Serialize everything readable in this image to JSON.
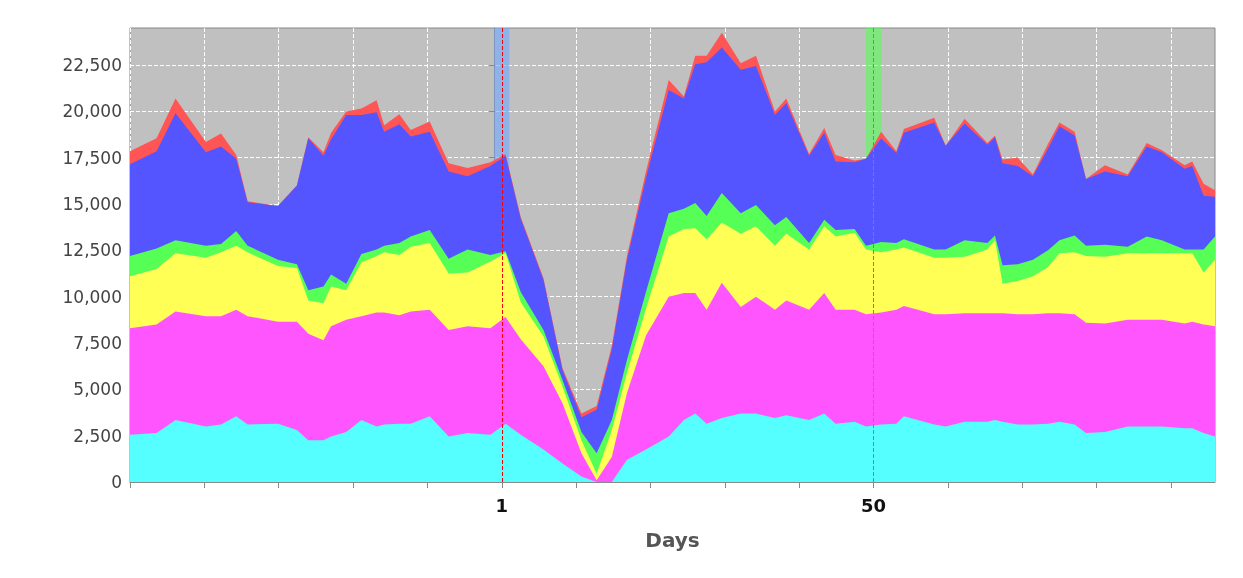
{
  "chart_data": {
    "type": "area",
    "stacked": true,
    "xlabel": "Days",
    "marker": "none",
    "grid": true,
    "xlim": [
      -48,
      95
    ],
    "xticks": [
      {
        "value": -48,
        "label": null
      },
      {
        "value": -38.2,
        "label": null
      },
      {
        "value": -28.4,
        "label": null
      },
      {
        "value": -18.6,
        "label": null
      },
      {
        "value": -8.8,
        "label": null
      },
      {
        "value": 1,
        "label": "1"
      },
      {
        "value": 10.8,
        "label": null
      },
      {
        "value": 20.6,
        "label": null
      },
      {
        "value": 30.4,
        "label": null
      },
      {
        "value": 40.2,
        "label": null
      },
      {
        "value": 50,
        "label": "50"
      },
      {
        "value": 59.8,
        "label": null
      },
      {
        "value": 69.6,
        "label": null
      },
      {
        "value": 79.4,
        "label": null
      },
      {
        "value": 89.2,
        "label": null
      }
    ],
    "ylim": [
      0,
      24500
    ],
    "yticks": [
      0,
      {
        "value": 2500,
        "label": "2,500"
      },
      {
        "value": 5000,
        "label": "5,000"
      },
      {
        "value": 7500,
        "label": "7,500"
      },
      {
        "value": 10000,
        "label": "10,000"
      },
      {
        "value": 12500,
        "label": "12,500"
      },
      {
        "value": 15000,
        "label": "15,000"
      },
      {
        "value": 17500,
        "label": "17,500"
      },
      {
        "value": 20000,
        "label": "20,000"
      },
      {
        "value": 22500,
        "label": "22,500"
      }
    ],
    "x": [
      -48,
      -44.5,
      -42,
      -38,
      -36,
      -34,
      -32.5,
      -28.5,
      -26,
      -24.5,
      -22.5,
      -21.5,
      -19.5,
      -17.5,
      -15.5,
      -14.5,
      -12.5,
      -11,
      -8.5,
      -6,
      -3.5,
      -0.5,
      1.5,
      3.5,
      6.5,
      9,
      11.5,
      13.5,
      15.5,
      17.5,
      20,
      23,
      25,
      26.5,
      28,
      30,
      32.5,
      34.5,
      37,
      38.5,
      41.5,
      43.5,
      45,
      47.5,
      49,
      51,
      53,
      54,
      58,
      59.5,
      62,
      65,
      66,
      67,
      69,
      71,
      73,
      74.5,
      76.5,
      78,
      80.5,
      83.5,
      86,
      88,
      91,
      92,
      93.5,
      95
    ],
    "ref_lines": [
      {
        "axis": "x",
        "value": 1,
        "color": "#ff0000",
        "line_style": "dashed"
      },
      {
        "axis": "x",
        "value": 50,
        "color": "#00dd00",
        "line_style": "dashed"
      }
    ],
    "bands": [
      {
        "axis": "x",
        "from": 0,
        "to": 2,
        "color": "#6fa8ff"
      },
      {
        "axis": "x",
        "from": 49,
        "to": 51,
        "color": "#55ff55"
      }
    ],
    "series": [
      {
        "color": "#55ffff",
        "values": [
          2550,
          2650,
          3350,
          3000,
          3100,
          3550,
          3100,
          3150,
          2800,
          2250,
          2250,
          2450,
          2700,
          3350,
          3000,
          3100,
          3150,
          3150,
          3550,
          2450,
          2650,
          2550,
          3150,
          2550,
          1750,
          1000,
          300,
          0,
          0,
          1200,
          1750,
          2450,
          3350,
          3700,
          3150,
          3450,
          3700,
          3700,
          3450,
          3600,
          3350,
          3700,
          3150,
          3250,
          3000,
          3100,
          3150,
          3550,
          3100,
          3000,
          3250,
          3250,
          3350,
          3250,
          3100,
          3100,
          3150,
          3250,
          3100,
          2650,
          2700,
          3000,
          3000,
          3000,
          2900,
          2900,
          2650,
          2450
        ]
      },
      {
        "color": "#ff55ff",
        "values": [
          5750,
          5850,
          5850,
          5950,
          5850,
          5750,
          5850,
          5500,
          5850,
          5750,
          5400,
          5950,
          6050,
          5600,
          6150,
          6050,
          5850,
          6050,
          5750,
          5750,
          5750,
          5750,
          5750,
          5150,
          4500,
          3250,
          1250,
          100,
          1350,
          3600,
          6150,
          7550,
          6850,
          6500,
          6150,
          7300,
          5750,
          6300,
          5850,
          6200,
          5950,
          6500,
          6150,
          6050,
          6050,
          6050,
          6150,
          5950,
          5950,
          6050,
          5850,
          5850,
          5750,
          5850,
          5950,
          5950,
          5950,
          5850,
          5950,
          5950,
          5850,
          5750,
          5750,
          5750,
          5650,
          5750,
          5850,
          5950
        ]
      },
      {
        "color": "#ffff55",
        "values": [
          2800,
          3000,
          3150,
          3150,
          3450,
          3450,
          3450,
          3000,
          2900,
          1800,
          2000,
          2150,
          1600,
          2900,
          3050,
          3250,
          3250,
          3500,
          3600,
          3050,
          2900,
          3600,
          3450,
          2000,
          1600,
          900,
          700,
          350,
          1450,
          1100,
          1450,
          3250,
          3450,
          3500,
          3800,
          3250,
          3950,
          3800,
          3450,
          3600,
          3250,
          3600,
          3950,
          4150,
          3500,
          3250,
          3250,
          3150,
          3050,
          3050,
          3050,
          3450,
          3950,
          1600,
          1800,
          2050,
          2500,
          3250,
          3350,
          3600,
          3600,
          3600,
          3600,
          3600,
          3800,
          3700,
          2800,
          3600
        ]
      },
      {
        "color": "#55ff55",
        "values": [
          1100,
          1100,
          700,
          650,
          450,
          800,
          350,
          350,
          200,
          550,
          900,
          650,
          350,
          450,
          350,
          350,
          650,
          550,
          700,
          800,
          1250,
          350,
          100,
          550,
          350,
          350,
          450,
          1100,
          550,
          700,
          900,
          1250,
          1100,
          1350,
          1250,
          1600,
          1100,
          1150,
          1100,
          900,
          350,
          350,
          350,
          200,
          200,
          550,
          350,
          450,
          450,
          450,
          900,
          350,
          250,
          1000,
          900,
          900,
          900,
          700,
          900,
          550,
          650,
          350,
          900,
          700,
          200,
          200,
          1250,
          1250
        ]
      },
      {
        "color": "#5555ff",
        "values": [
          4950,
          5250,
          6850,
          5050,
          5250,
          3900,
          2350,
          2900,
          4250,
          8200,
          7050,
          7300,
          9100,
          7500,
          7400,
          6150,
          6400,
          5400,
          5300,
          4700,
          3950,
          4800,
          5150,
          3950,
          2700,
          550,
          800,
          2350,
          3800,
          5400,
          6150,
          6650,
          5950,
          7500,
          8300,
          7850,
          7750,
          7500,
          5950,
          6150,
          4700,
          4700,
          3700,
          3600,
          4700,
          5600,
          4850,
          5750,
          6850,
          5600,
          6300,
          5300,
          5300,
          5500,
          5300,
          4500,
          5500,
          6150,
          5400,
          3600,
          3950,
          3800,
          4850,
          4750,
          4350,
          4500,
          2900,
          2150
        ]
      },
      {
        "color": "#ff5555",
        "values": [
          700,
          700,
          800,
          550,
          700,
          200,
          50,
          0,
          0,
          50,
          200,
          350,
          200,
          350,
          650,
          350,
          550,
          350,
          550,
          450,
          450,
          200,
          100,
          100,
          100,
          100,
          200,
          200,
          200,
          200,
          350,
          550,
          100,
          450,
          350,
          800,
          350,
          550,
          200,
          250,
          100,
          250,
          350,
          100,
          0,
          350,
          100,
          200,
          250,
          0,
          250,
          100,
          100,
          200,
          450,
          100,
          250,
          200,
          200,
          0,
          350,
          100,
          200,
          100,
          200,
          250,
          650,
          350
        ]
      }
    ]
  }
}
